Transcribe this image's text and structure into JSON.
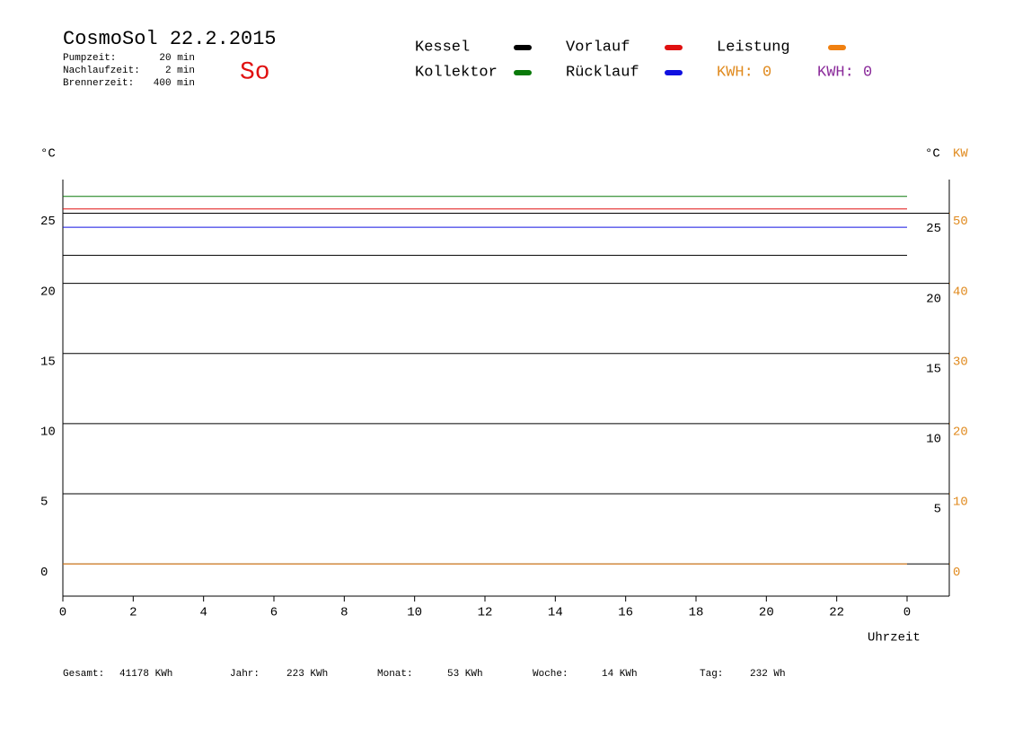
{
  "header": {
    "title": "CosmoSol 22.2.2015",
    "day": "So",
    "settings": [
      {
        "label": "Pumpzeit:",
        "value": "20 min"
      },
      {
        "label": "Nachlaufzeit:",
        "value": "2 min"
      },
      {
        "label": "Brennerzeit:",
        "value": "400 min"
      }
    ]
  },
  "kwh": [
    {
      "text": "KWH: 0",
      "color": "#e08a1e"
    },
    {
      "text": "KWH: 0",
      "color": "#8a2a9a"
    }
  ],
  "chart_data": {
    "type": "line",
    "x": [
      0,
      24
    ],
    "series": [
      {
        "name": "Kessel",
        "color": "#000000",
        "values": [
          22.0,
          22.0
        ]
      },
      {
        "name": "Kollektor",
        "color": "#0a7a0a",
        "values": [
          26.2,
          26.2
        ]
      },
      {
        "name": "Vorlauf",
        "color": "#e01010",
        "values": [
          25.3,
          25.3
        ]
      },
      {
        "name": "Rücklauf",
        "color": "#1010e0",
        "values": [
          24.0,
          24.0
        ]
      },
      {
        "name": "Leistung",
        "color": "#f08010",
        "axis": "kw",
        "values": [
          0,
          0
        ]
      }
    ],
    "xlim": [
      0,
      25.2
    ],
    "xticks": [
      0,
      2,
      4,
      6,
      8,
      10,
      12,
      14,
      16,
      18,
      20,
      22,
      {
        "value": 24,
        "label": "0"
      }
    ],
    "ylim": [
      -2.3,
      27.4
    ],
    "yticks": [
      0,
      5,
      10,
      15,
      20,
      25
    ],
    "y2ticks": [
      5,
      10,
      15,
      20,
      25
    ],
    "kwlim": [
      -4.6,
      54.8
    ],
    "kwticks": [
      0,
      10,
      20,
      30,
      40,
      50
    ],
    "y_label": "°C",
    "y2_label": "°C",
    "kw_label": "KW",
    "x_label": "Uhrzeit",
    "grid": true
  },
  "footer": [
    {
      "label": "Gesamt:",
      "value": "41178 KWh"
    },
    {
      "label": "Jahr:",
      "value": "223 KWh"
    },
    {
      "label": "Monat:",
      "value": "53 KWh"
    },
    {
      "label": "Woche:",
      "value": "14 KWh"
    },
    {
      "label": "Tag:",
      "value": "232 Wh"
    }
  ]
}
